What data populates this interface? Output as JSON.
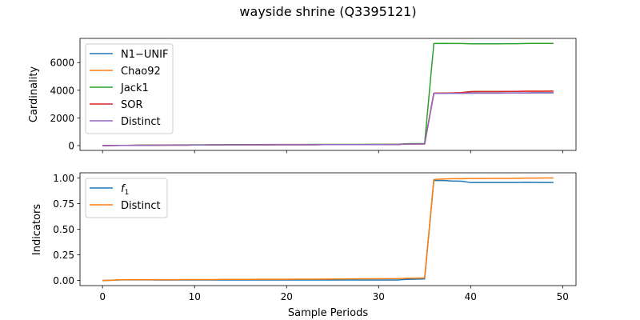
{
  "figure": {
    "title": "wayside shrine (Q3395121)"
  },
  "colors": {
    "blue": "#1f77b4",
    "orange": "#ff7f0e",
    "green": "#2ca02c",
    "red": "#d62728",
    "purple": "#9467bd"
  },
  "chart_data": [
    {
      "type": "line",
      "title": "",
      "xlabel": "",
      "ylabel": "Cardinality",
      "xlim": [
        -2.45,
        51.45
      ],
      "ylim": [
        -350,
        7750
      ],
      "xticks": [
        0,
        10,
        20,
        30,
        40,
        50
      ],
      "xtick_labels_visible": false,
      "yticks": [
        0,
        2000,
        4000,
        6000
      ],
      "ytick_labels": [
        "0",
        "2000",
        "4000",
        "6000"
      ],
      "legend_position": "upper-left",
      "grid": false,
      "x": [
        0,
        1,
        2,
        3,
        4,
        5,
        6,
        7,
        8,
        9,
        10,
        11,
        12,
        13,
        14,
        15,
        16,
        17,
        18,
        19,
        20,
        21,
        22,
        23,
        24,
        25,
        26,
        27,
        28,
        29,
        30,
        31,
        32,
        33,
        34,
        35,
        36,
        37,
        38,
        39,
        40,
        41,
        42,
        43,
        44,
        45,
        46,
        47,
        48,
        49
      ],
      "series": [
        {
          "name": "N1−UNIF",
          "color": "#1f77b4",
          "values": [
            0,
            5,
            10,
            14,
            18,
            22,
            26,
            30,
            33,
            36,
            39,
            42,
            45,
            47,
            49,
            51,
            53,
            55,
            57,
            59,
            60,
            62,
            63,
            64,
            66,
            67,
            68,
            69,
            70,
            72,
            73,
            74,
            75,
            110,
            115,
            120,
            3780,
            3790,
            3790,
            3790,
            3800,
            3800,
            3800,
            3800,
            3810,
            3810,
            3810,
            3820,
            3820,
            3820
          ]
        },
        {
          "name": "Chao92",
          "color": "#ff7f0e",
          "values": [
            0,
            5,
            10,
            14,
            18,
            22,
            26,
            30,
            33,
            36,
            39,
            42,
            45,
            47,
            49,
            51,
            53,
            55,
            57,
            59,
            60,
            62,
            63,
            64,
            66,
            67,
            68,
            69,
            70,
            72,
            73,
            74,
            75,
            110,
            115,
            120,
            3790,
            3800,
            3800,
            3820,
            3900,
            3910,
            3910,
            3910,
            3920,
            3920,
            3930,
            3930,
            3930,
            3940
          ]
        },
        {
          "name": "Jack1",
          "color": "#2ca02c",
          "values": [
            0,
            8,
            15,
            21,
            27,
            33,
            38,
            43,
            47,
            51,
            55,
            58,
            61,
            64,
            66,
            68,
            70,
            72,
            74,
            76,
            77,
            79,
            80,
            81,
            83,
            84,
            85,
            86,
            87,
            89,
            90,
            91,
            92,
            135,
            140,
            145,
            7380,
            7390,
            7380,
            7380,
            7360,
            7360,
            7360,
            7360,
            7370,
            7370,
            7380,
            7390,
            7390,
            7390
          ]
        },
        {
          "name": "SOR",
          "color": "#d62728",
          "values": [
            0,
            5,
            10,
            14,
            18,
            22,
            26,
            30,
            33,
            36,
            39,
            42,
            45,
            47,
            49,
            51,
            53,
            55,
            57,
            59,
            60,
            62,
            63,
            64,
            66,
            67,
            68,
            69,
            70,
            72,
            73,
            74,
            75,
            110,
            115,
            120,
            3790,
            3800,
            3810,
            3830,
            3900,
            3910,
            3910,
            3910,
            3920,
            3920,
            3930,
            3930,
            3930,
            3940
          ]
        },
        {
          "name": "Distinct",
          "color": "#9467bd",
          "values": [
            0,
            5,
            10,
            14,
            18,
            22,
            26,
            30,
            33,
            36,
            39,
            42,
            45,
            47,
            49,
            51,
            53,
            55,
            57,
            59,
            60,
            62,
            63,
            64,
            66,
            67,
            68,
            69,
            70,
            72,
            73,
            74,
            75,
            110,
            115,
            120,
            3770,
            3780,
            3780,
            3780,
            3790,
            3790,
            3790,
            3790,
            3800,
            3800,
            3800,
            3810,
            3810,
            3810
          ]
        }
      ]
    },
    {
      "type": "line",
      "title": "",
      "xlabel": "Sample Periods",
      "ylabel": "Indicators",
      "xlim": [
        -2.45,
        51.45
      ],
      "ylim": [
        -0.05,
        1.05
      ],
      "xticks": [
        0,
        10,
        20,
        30,
        40,
        50
      ],
      "xtick_labels": [
        "0",
        "10",
        "20",
        "30",
        "40",
        "50"
      ],
      "yticks": [
        0,
        0.25,
        0.5,
        0.75,
        1.0
      ],
      "ytick_labels": [
        "0.00",
        "0.25",
        "0.50",
        "0.75",
        "1.00"
      ],
      "legend_position": "upper-left",
      "grid": false,
      "x": [
        0,
        1,
        2,
        3,
        4,
        5,
        6,
        7,
        8,
        9,
        10,
        11,
        12,
        13,
        14,
        15,
        16,
        17,
        18,
        19,
        20,
        21,
        22,
        23,
        24,
        25,
        26,
        27,
        28,
        29,
        30,
        31,
        32,
        33,
        34,
        35,
        36,
        37,
        38,
        39,
        40,
        41,
        42,
        43,
        44,
        45,
        46,
        47,
        48,
        49
      ],
      "series": [
        {
          "name": "f1",
          "color": "#1f77b4",
          "values": [
            0.0,
            0.002,
            0.006,
            0.006,
            0.006,
            0.006,
            0.005,
            0.005,
            0.005,
            0.005,
            0.005,
            0.005,
            0.005,
            0.005,
            0.005,
            0.005,
            0.005,
            0.005,
            0.005,
            0.005,
            0.005,
            0.005,
            0.005,
            0.005,
            0.005,
            0.005,
            0.005,
            0.005,
            0.005,
            0.005,
            0.005,
            0.005,
            0.005,
            0.01,
            0.012,
            0.015,
            0.975,
            0.975,
            0.97,
            0.968,
            0.955,
            0.955,
            0.955,
            0.955,
            0.955,
            0.955,
            0.957,
            0.956,
            0.955,
            0.955
          ]
        },
        {
          "name": "Distinct",
          "color": "#ff7f0e",
          "values": [
            0.0,
            0.003,
            0.007,
            0.008,
            0.008,
            0.008,
            0.008,
            0.008,
            0.008,
            0.009,
            0.009,
            0.009,
            0.009,
            0.01,
            0.01,
            0.01,
            0.01,
            0.011,
            0.011,
            0.011,
            0.011,
            0.012,
            0.012,
            0.012,
            0.013,
            0.014,
            0.015,
            0.015,
            0.016,
            0.016,
            0.017,
            0.017,
            0.018,
            0.022,
            0.023,
            0.025,
            0.985,
            0.99,
            0.992,
            0.992,
            0.994,
            0.994,
            0.995,
            0.995,
            0.995,
            0.996,
            0.998,
            0.998,
            0.999,
            1.0
          ]
        }
      ]
    }
  ]
}
